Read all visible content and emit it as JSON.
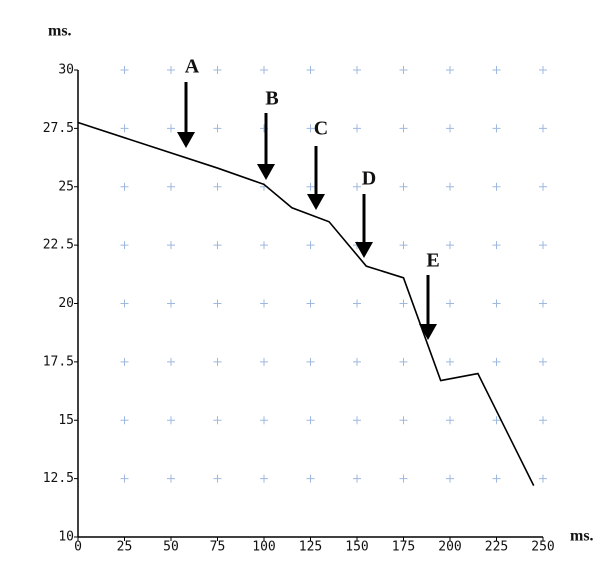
{
  "chart_data": {
    "type": "line",
    "x": [
      0,
      75,
      100,
      115,
      135,
      155,
      175,
      195,
      215,
      245
    ],
    "y": [
      27.75,
      25.8,
      25.1,
      24.1,
      23.5,
      21.6,
      21.1,
      16.7,
      17.0,
      12.2
    ],
    "color": "#000000",
    "xlim": [
      0,
      250
    ],
    "ylim": [
      10,
      30
    ],
    "xticks": [
      0,
      25,
      50,
      75,
      100,
      125,
      150,
      175,
      200,
      225,
      250
    ],
    "yticks": [
      10,
      12.5,
      15,
      17.5,
      20,
      22.5,
      25,
      27.5,
      30
    ],
    "xlabel": "ms.",
    "ylabel": "ms.",
    "grid": true,
    "grid_color": "#9fb8e0",
    "annotations": [
      "A",
      "B",
      "C",
      "D",
      "E"
    ]
  }
}
